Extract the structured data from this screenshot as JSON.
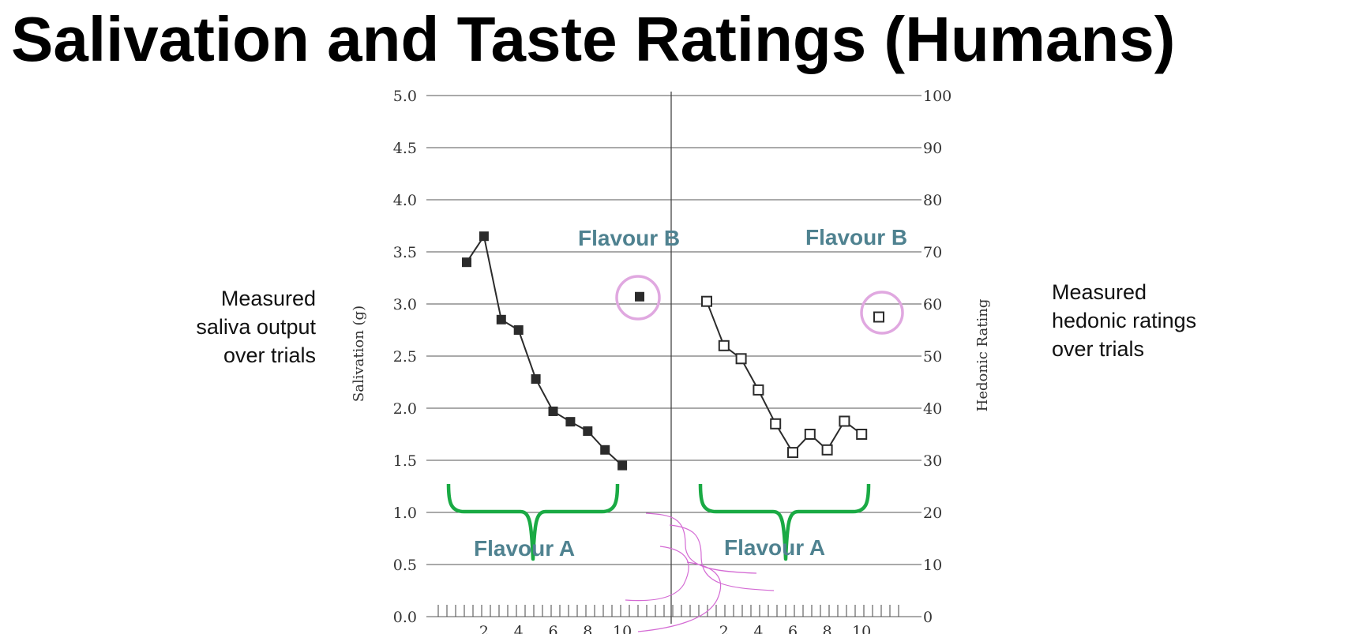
{
  "slide": {
    "title": "Salivation and Taste Ratings (Humans)",
    "left_note": [
      "Measured",
      "saliva output",
      "over trials"
    ],
    "right_note": [
      "Measured",
      "hedonic ratings",
      "over trials"
    ]
  },
  "chart_data": {
    "type": "line",
    "ylabel_left": "Salivation (g)",
    "ylabel_right": "Hedonic Rating",
    "ylim_left": [
      0,
      5
    ],
    "ylim_right": [
      0,
      100
    ],
    "yticks_left": [
      "0.0",
      "0.5",
      "1.0",
      "1.5",
      "2.0",
      "2.5",
      "3.0",
      "3.5",
      "4.0",
      "4.5",
      "5.0"
    ],
    "yticks_right": [
      "0",
      "10",
      "20",
      "30",
      "40",
      "50",
      "60",
      "70",
      "80",
      "90",
      "100"
    ],
    "xticks": [
      "2",
      "4",
      "6",
      "8",
      "10"
    ],
    "grid": true,
    "series": [
      {
        "panel": "salivation",
        "marker": "filled-square",
        "color": "#2b2b2b",
        "x": [
          1,
          2,
          3,
          4,
          5,
          6,
          7,
          8,
          9,
          10
        ],
        "y": [
          3.4,
          3.65,
          2.85,
          2.75,
          2.28,
          1.97,
          1.87,
          1.78,
          1.6,
          1.45
        ]
      },
      {
        "panel": "salivation",
        "marker": "filled-square",
        "color": "#2b2b2b",
        "x": [
          11
        ],
        "y": [
          3.07
        ]
      },
      {
        "panel": "hedonic",
        "marker": "open-square",
        "color": "#2b2b2b",
        "x": [
          1,
          2,
          3,
          4,
          5,
          6,
          7,
          8,
          9,
          10
        ],
        "y": [
          60.5,
          52,
          49.5,
          43.5,
          37,
          31.5,
          35,
          32,
          37.5,
          35
        ]
      },
      {
        "panel": "hedonic",
        "marker": "open-square",
        "color": "#2b2b2b",
        "x": [
          11
        ],
        "y": [
          57.5
        ]
      }
    ],
    "annotations": {
      "flavour_a": "Flavour A",
      "flavour_b": "Flavour B",
      "bracket_color": "#1aaa44",
      "circle_color": "#e0a8e0"
    }
  }
}
